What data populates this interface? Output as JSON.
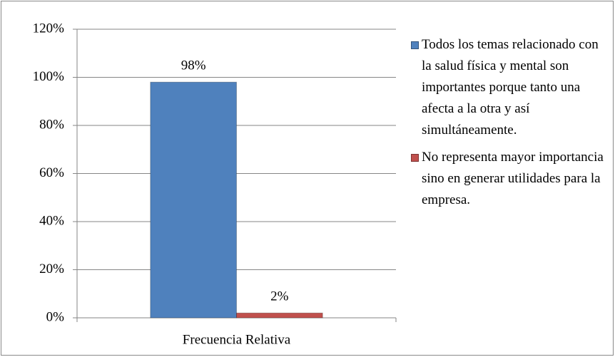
{
  "chart_data": {
    "type": "bar",
    "categories": [
      "Frecuencia Relativa"
    ],
    "series": [
      {
        "name": "Todos los temas relacionado con la salud física y mental son importantes porque tanto una afecta a la otra y así simultáneamente.",
        "color": "#4f81bd",
        "values": [
          98
        ],
        "value_labels": [
          "98%"
        ]
      },
      {
        "name": "No representa mayor importancia sino en generar utilidades para la empresa.",
        "color": "#c0504d",
        "values": [
          2
        ],
        "value_labels": [
          "2%"
        ]
      }
    ],
    "ylim": [
      0,
      120
    ],
    "yticks": [
      {
        "value": 0,
        "label": "0%"
      },
      {
        "value": 20,
        "label": "20%"
      },
      {
        "value": 40,
        "label": "40%"
      },
      {
        "value": 60,
        "label": "60%"
      },
      {
        "value": 80,
        "label": "80%"
      },
      {
        "value": 100,
        "label": "100%"
      },
      {
        "value": 120,
        "label": "120%"
      }
    ],
    "grid": true,
    "legend": "right"
  }
}
